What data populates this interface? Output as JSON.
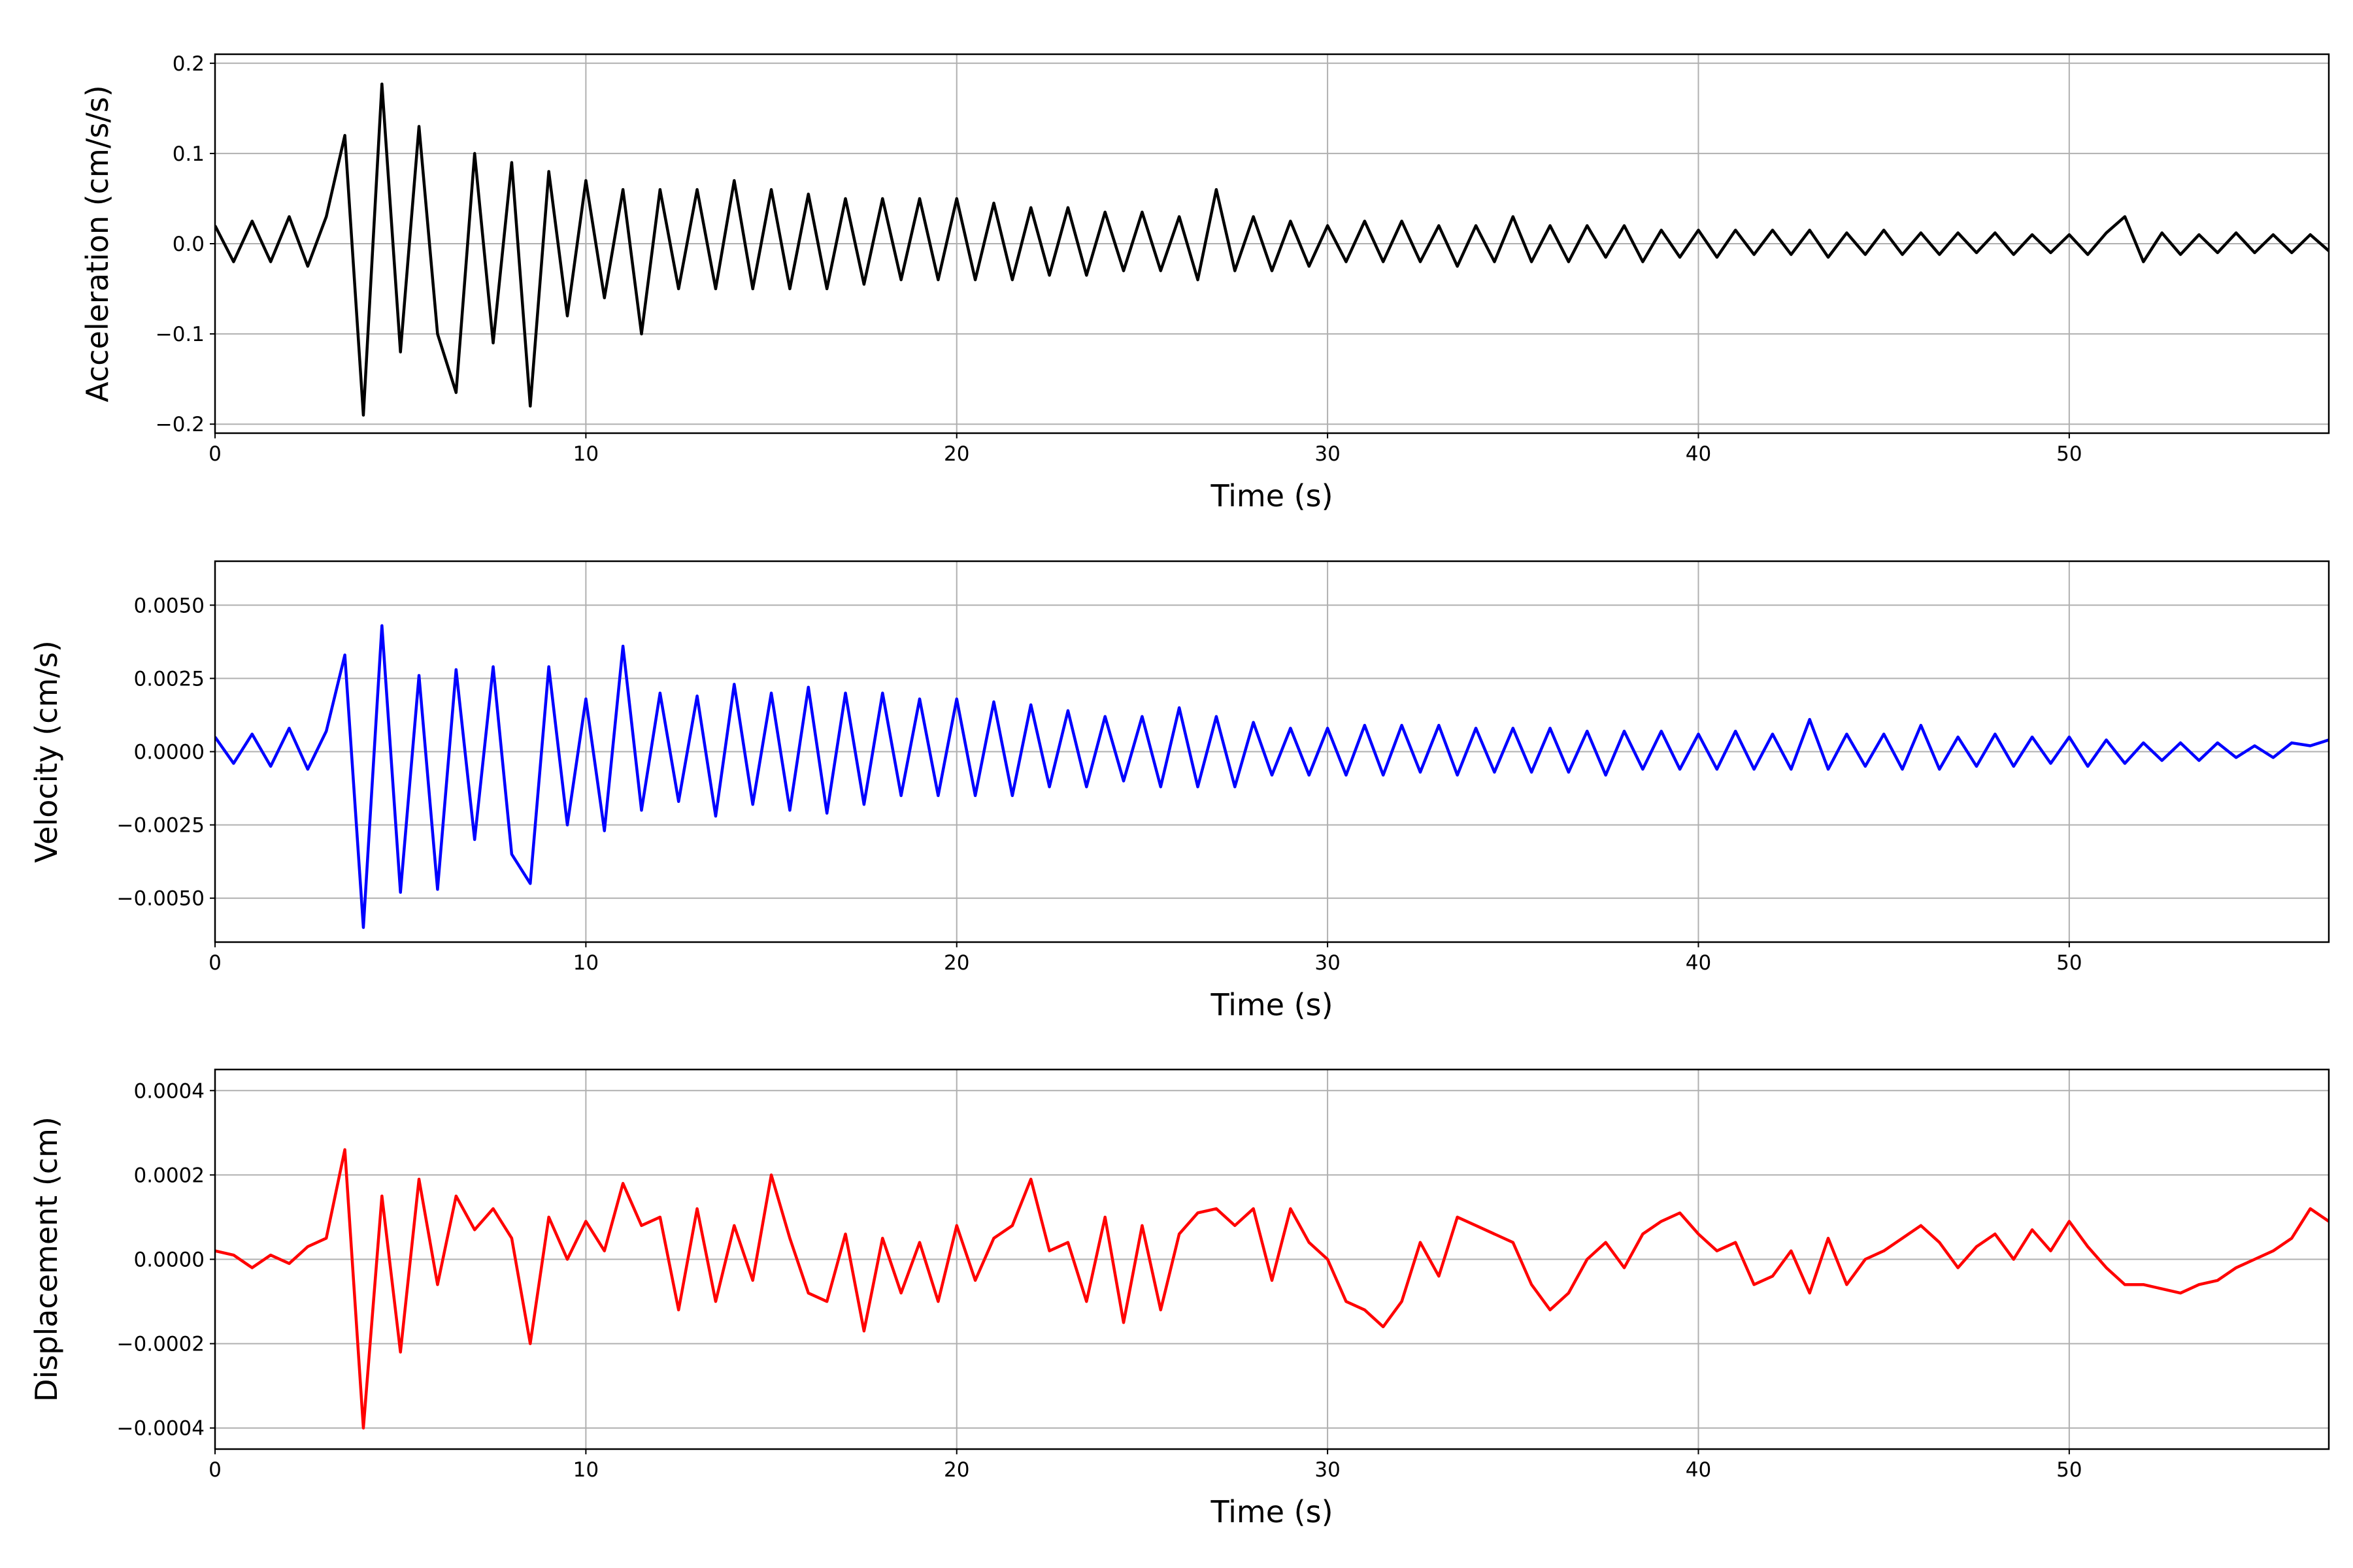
{
  "chart_data": [
    {
      "type": "line",
      "xlabel": "Time (s)",
      "ylabel": "Acceleration (cm/s/s)",
      "color": "#000000",
      "grid": true,
      "xlim": [
        0,
        57
      ],
      "xticks": [
        0,
        10,
        20,
        30,
        40,
        50
      ],
      "ylim": [
        -0.21,
        0.21
      ],
      "yticks": [
        {
          "value": -0.2,
          "label": "−0.2"
        },
        {
          "value": -0.1,
          "label": "−0.1"
        },
        {
          "value": 0,
          "label": "0.0"
        },
        0.1,
        0.2
      ],
      "x": [
        0,
        0.5,
        1,
        1.5,
        2,
        2.5,
        3,
        3.5,
        4,
        4.5,
        5,
        5.5,
        6,
        6.5,
        7,
        7.5,
        8,
        8.5,
        9,
        9.5,
        10,
        10.5,
        11,
        11.5,
        12,
        12.5,
        13,
        13.5,
        14,
        14.5,
        15,
        15.5,
        16,
        16.5,
        17,
        17.5,
        18,
        18.5,
        19,
        19.5,
        20,
        20.5,
        21,
        21.5,
        22,
        22.5,
        23,
        23.5,
        24,
        24.5,
        25,
        25.5,
        26,
        26.5,
        27,
        27.5,
        28,
        28.5,
        29,
        29.5,
        30,
        30.5,
        31,
        31.5,
        32,
        32.5,
        33,
        33.5,
        34,
        34.5,
        35,
        35.5,
        36,
        36.5,
        37,
        37.5,
        38,
        38.5,
        39,
        39.5,
        40,
        40.5,
        41,
        41.5,
        42,
        42.5,
        43,
        43.5,
        44,
        44.5,
        45,
        45.5,
        46,
        46.5,
        47,
        47.5,
        48,
        48.5,
        49,
        49.5,
        50,
        50.5,
        51,
        51.5,
        52,
        52.5,
        53,
        53.5,
        54,
        54.5,
        55,
        55.5,
        56,
        56.5,
        57
      ],
      "values": [
        0.02,
        -0.02,
        0.025,
        -0.02,
        0.03,
        -0.025,
        0.03,
        0.12,
        -0.19,
        0.177,
        -0.12,
        0.13,
        -0.1,
        -0.165,
        0.1,
        -0.11,
        0.09,
        -0.18,
        0.08,
        -0.08,
        0.07,
        -0.06,
        0.06,
        -0.1,
        0.06,
        -0.05,
        0.06,
        -0.05,
        0.07,
        -0.05,
        0.06,
        -0.05,
        0.055,
        -0.05,
        0.05,
        -0.045,
        0.05,
        -0.04,
        0.05,
        -0.04,
        0.05,
        -0.04,
        0.045,
        -0.04,
        0.04,
        -0.035,
        0.04,
        -0.035,
        0.035,
        -0.03,
        0.035,
        -0.03,
        0.03,
        -0.04,
        0.06,
        -0.03,
        0.03,
        -0.03,
        0.025,
        -0.025,
        0.02,
        -0.02,
        0.025,
        -0.02,
        0.025,
        -0.02,
        0.02,
        -0.025,
        0.02,
        -0.02,
        0.03,
        -0.02,
        0.02,
        -0.02,
        0.02,
        -0.015,
        0.02,
        -0.02,
        0.015,
        -0.015,
        0.015,
        -0.015,
        0.015,
        -0.012,
        0.015,
        -0.012,
        0.015,
        -0.015,
        0.012,
        -0.012,
        0.015,
        -0.012,
        0.012,
        -0.012,
        0.012,
        -0.01,
        0.012,
        -0.012,
        0.01,
        -0.01,
        0.01,
        -0.012,
        0.012,
        0.03,
        -0.02,
        0.012,
        -0.012,
        0.01,
        -0.01,
        0.012,
        -0.01,
        0.01,
        -0.01,
        0.01,
        -0.008
      ]
    },
    {
      "type": "line",
      "xlabel": "Time (s)",
      "ylabel": "Velocity (cm/s)",
      "color": "#0000ff",
      "grid": true,
      "xlim": [
        0,
        57
      ],
      "xticks": [
        0,
        10,
        20,
        30,
        40,
        50
      ],
      "ylim": [
        -0.0065,
        0.0065
      ],
      "yticks": [
        {
          "value": -0.005,
          "label": "−0.0050"
        },
        {
          "value": -0.0025,
          "label": "−0.0025"
        },
        {
          "value": 0,
          "label": "0.0000"
        },
        0.0025,
        {
          "value": 0.005,
          "label": "0.0050"
        }
      ],
      "x": [
        0,
        0.5,
        1,
        1.5,
        2,
        2.5,
        3,
        3.5,
        4,
        4.5,
        5,
        5.5,
        6,
        6.5,
        7,
        7.5,
        8,
        8.5,
        9,
        9.5,
        10,
        10.5,
        11,
        11.5,
        12,
        12.5,
        13,
        13.5,
        14,
        14.5,
        15,
        15.5,
        16,
        16.5,
        17,
        17.5,
        18,
        18.5,
        19,
        19.5,
        20,
        20.5,
        21,
        21.5,
        22,
        22.5,
        23,
        23.5,
        24,
        24.5,
        25,
        25.5,
        26,
        26.5,
        27,
        27.5,
        28,
        28.5,
        29,
        29.5,
        30,
        30.5,
        31,
        31.5,
        32,
        32.5,
        33,
        33.5,
        34,
        34.5,
        35,
        35.5,
        36,
        36.5,
        37,
        37.5,
        38,
        38.5,
        39,
        39.5,
        40,
        40.5,
        41,
        41.5,
        42,
        42.5,
        43,
        43.5,
        44,
        44.5,
        45,
        45.5,
        46,
        46.5,
        47,
        47.5,
        48,
        48.5,
        49,
        49.5,
        50,
        50.5,
        51,
        51.5,
        52,
        52.5,
        53,
        53.5,
        54,
        54.5,
        55,
        55.5,
        56,
        56.5,
        57
      ],
      "values": [
        0.0005,
        -0.0004,
        0.0006,
        -0.0005,
        0.0008,
        -0.0006,
        0.0007,
        0.0033,
        -0.006,
        0.0043,
        -0.0048,
        0.0026,
        -0.0047,
        0.0028,
        -0.003,
        0.0029,
        -0.0035,
        -0.0045,
        0.0029,
        -0.0025,
        0.0018,
        -0.0027,
        0.0036,
        -0.002,
        0.002,
        -0.0017,
        0.0019,
        -0.0022,
        0.0023,
        -0.0018,
        0.002,
        -0.002,
        0.0022,
        -0.0021,
        0.002,
        -0.0018,
        0.002,
        -0.0015,
        0.0018,
        -0.0015,
        0.0018,
        -0.0015,
        0.0017,
        -0.0015,
        0.0016,
        -0.0012,
        0.0014,
        -0.0012,
        0.0012,
        -0.001,
        0.0012,
        -0.0012,
        0.0015,
        -0.0012,
        0.0012,
        -0.0012,
        0.001,
        -0.0008,
        0.0008,
        -0.0008,
        0.0008,
        -0.0008,
        0.0009,
        -0.0008,
        0.0009,
        -0.0007,
        0.0009,
        -0.0008,
        0.0008,
        -0.0007,
        0.0008,
        -0.0007,
        0.0008,
        -0.0007,
        0.0007,
        -0.0008,
        0.0007,
        -0.0006,
        0.0007,
        -0.0006,
        0.0006,
        -0.0006,
        0.0007,
        -0.0006,
        0.0006,
        -0.0006,
        0.0011,
        -0.0006,
        0.0006,
        -0.0005,
        0.0006,
        -0.0006,
        0.0009,
        -0.0006,
        0.0005,
        -0.0005,
        0.0006,
        -0.0005,
        0.0005,
        -0.0004,
        0.0005,
        -0.0005,
        0.0004,
        -0.0004,
        0.0003,
        -0.0003,
        0.0003,
        -0.0003,
        0.0003,
        -0.0002,
        0.0002,
        -0.0002,
        0.0003,
        0.0002,
        0.0004
      ]
    },
    {
      "type": "line",
      "xlabel": "Time (s)",
      "ylabel": "Displacement (cm)",
      "color": "#ff0000",
      "grid": true,
      "xlim": [
        0,
        57
      ],
      "xticks": [
        0,
        10,
        20,
        30,
        40,
        50
      ],
      "ylim": [
        -0.00045,
        0.00045
      ],
      "yticks": [
        {
          "value": -0.0004,
          "label": "−0.0004"
        },
        {
          "value": -0.0002,
          "label": "−0.0002"
        },
        {
          "value": 0,
          "label": "0.0000"
        },
        0.0002,
        0.0004
      ],
      "x": [
        0,
        0.5,
        1,
        1.5,
        2,
        2.5,
        3,
        3.5,
        4,
        4.5,
        5,
        5.5,
        6,
        6.5,
        7,
        7.5,
        8,
        8.5,
        9,
        9.5,
        10,
        10.5,
        11,
        11.5,
        12,
        12.5,
        13,
        13.5,
        14,
        14.5,
        15,
        15.5,
        16,
        16.5,
        17,
        17.5,
        18,
        18.5,
        19,
        19.5,
        20,
        20.5,
        21,
        21.5,
        22,
        22.5,
        23,
        23.5,
        24,
        24.5,
        25,
        25.5,
        26,
        26.5,
        27,
        27.5,
        28,
        28.5,
        29,
        29.5,
        30,
        30.5,
        31,
        31.5,
        32,
        32.5,
        33,
        33.5,
        34,
        34.5,
        35,
        35.5,
        36,
        36.5,
        37,
        37.5,
        38,
        38.5,
        39,
        39.5,
        40,
        40.5,
        41,
        41.5,
        42,
        42.5,
        43,
        43.5,
        44,
        44.5,
        45,
        45.5,
        46,
        46.5,
        47,
        47.5,
        48,
        48.5,
        49,
        49.5,
        50,
        50.5,
        51,
        51.5,
        52,
        52.5,
        53,
        53.5,
        54,
        54.5,
        55,
        55.5,
        56,
        56.5,
        57
      ],
      "values": [
        2e-05,
        1e-05,
        -2e-05,
        1e-05,
        -1e-05,
        3e-05,
        5e-05,
        0.00026,
        -0.0004,
        0.00015,
        -0.00022,
        0.00019,
        -6e-05,
        0.00015,
        7e-05,
        0.00012,
        5e-05,
        -0.0002,
        0.0001,
        0,
        9e-05,
        2e-05,
        0.00018,
        8e-05,
        0.0001,
        -0.00012,
        0.00012,
        -0.0001,
        8e-05,
        -5e-05,
        0.0002,
        5e-05,
        -8e-05,
        -0.0001,
        6e-05,
        -0.00017,
        5e-05,
        -8e-05,
        4e-05,
        -0.0001,
        8e-05,
        -5e-05,
        5e-05,
        8e-05,
        0.00019,
        2e-05,
        4e-05,
        -0.0001,
        0.0001,
        -0.00015,
        8e-05,
        -0.00012,
        6e-05,
        0.00011,
        0.00012,
        8e-05,
        0.00012,
        -5e-05,
        0.00012,
        4e-05,
        0,
        -0.0001,
        -0.00012,
        -0.00016,
        -0.0001,
        4e-05,
        -4e-05,
        0.0001,
        8e-05,
        6e-05,
        4e-05,
        -6e-05,
        -0.00012,
        -8e-05,
        0,
        4e-05,
        -2e-05,
        6e-05,
        9e-05,
        0.00011,
        6e-05,
        2e-05,
        4e-05,
        -6e-05,
        -4e-05,
        2e-05,
        -8e-05,
        5e-05,
        -6e-05,
        0,
        2e-05,
        5e-05,
        8e-05,
        4e-05,
        -2e-05,
        3e-05,
        6e-05,
        0,
        7e-05,
        2e-05,
        9e-05,
        3e-05,
        -2e-05,
        -6e-05,
        -6e-05,
        -7e-05,
        -8e-05,
        -6e-05,
        -5e-05,
        -2e-05,
        0,
        2e-05,
        5e-05,
        0.00012,
        9e-05
      ]
    }
  ]
}
